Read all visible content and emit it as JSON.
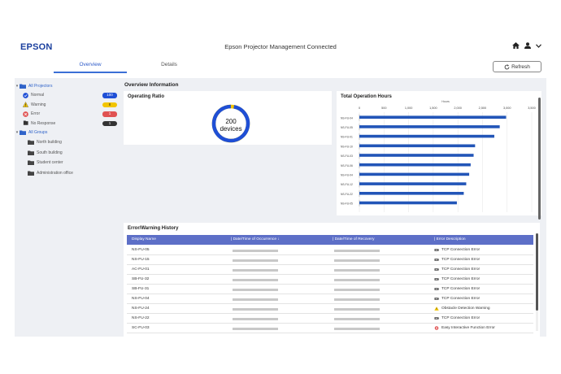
{
  "header": {
    "logo": "EPSON",
    "title": "Epson Projector Management Connected",
    "icons": [
      "home-icon",
      "user-icon",
      "chevron-down-icon"
    ]
  },
  "tabs": [
    {
      "label": "Overview",
      "active": true
    },
    {
      "label": "Details",
      "active": false
    }
  ],
  "refresh_label": "Refresh",
  "sidebar": {
    "projectors_label": "All Projectors",
    "statuses": [
      {
        "label": "Normal",
        "count": "100",
        "color": "#1f4fd6",
        "icon": "check-circle-icon"
      },
      {
        "label": "Warning",
        "count": "8",
        "color": "#f2c400",
        "icon": "warning-icon"
      },
      {
        "label": "Error",
        "count": "1",
        "color": "#e05252",
        "icon": "error-icon"
      },
      {
        "label": "No Response",
        "count": "1",
        "color": "#333333",
        "icon": "no-response-icon"
      }
    ],
    "groups_label": "All Groups",
    "groups": [
      "North building",
      "South building",
      "Student center",
      "Administration office"
    ]
  },
  "overview": {
    "title": "Overview Information",
    "ratio_title": "Operating Ratio",
    "ratio_count": "200",
    "ratio_unit": "devices",
    "ratio_fraction": 0.97
  },
  "chart_data": {
    "type": "bar",
    "title": "Total Operation Hours",
    "xlabel": "Hours",
    "xlim": [
      0,
      3500
    ],
    "ticks": [
      "0",
      "500",
      "1,000",
      "1,500",
      "2,000",
      "2,500",
      "3,000",
      "3,500"
    ],
    "categories": [
      "NS-FU-04",
      "NS-FU-05",
      "NS-FU-01",
      "NS-FU-10",
      "NS-FU-03",
      "NS-FU-06",
      "NS-FU-04",
      "NS-FU-12",
      "NS-FU-22",
      "NS-FU-05"
    ],
    "values": [
      2980,
      2850,
      2740,
      2350,
      2320,
      2260,
      2230,
      2170,
      2120,
      1980
    ],
    "color": "#2255b8"
  },
  "error_history": {
    "title": "Error/Warning History",
    "columns": [
      "Display Name",
      "Date/Time of Occurrence",
      "Date/Time of Recovery",
      "Error Description"
    ],
    "rows": [
      {
        "name": "NS-FU-05",
        "type": "error",
        "desc": "TCP Connection Error"
      },
      {
        "name": "NS-FU-15",
        "type": "error",
        "desc": "TCP Connection Error"
      },
      {
        "name": "AC-FU-01",
        "type": "error",
        "desc": "TCP Connection Error"
      },
      {
        "name": "SB-FU-32",
        "type": "error",
        "desc": "TCP Connection Error"
      },
      {
        "name": "SB-FU-31",
        "type": "error",
        "desc": "TCP Connection Error"
      },
      {
        "name": "NS-FU-04",
        "type": "error",
        "desc": "TCP Connection Error"
      },
      {
        "name": "NS-FU-24",
        "type": "warning",
        "desc": "Obstacle Detection Warning"
      },
      {
        "name": "NS-FU-22",
        "type": "error",
        "desc": "TCP Connection Error"
      },
      {
        "name": "SC-FU-03",
        "type": "critical",
        "desc": "Easy Interactive Function Error"
      }
    ]
  }
}
